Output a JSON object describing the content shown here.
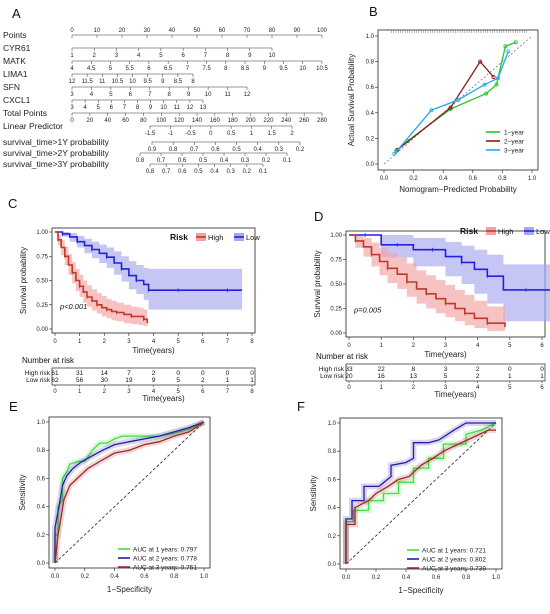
{
  "colors": {
    "high": "#c0392b",
    "low": "#2222dd",
    "high_band": "#f2a2a2",
    "low_band": "#a8a8f0",
    "y1": "#22cc22",
    "y2": "#8b1a1a",
    "y3": "#22aaee",
    "roc1": "#44dd44",
    "roc2": "#2a1aa8",
    "roc3": "#a02828"
  },
  "panels": {
    "a": "A",
    "b": "B",
    "c": "C",
    "d": "D",
    "e": "E",
    "f": "F"
  },
  "chart_data": [
    {
      "type": "nomogram",
      "panel": "A",
      "rows": [
        {
          "label": "Points",
          "ticks": [
            "0",
            "10",
            "20",
            "30",
            "40",
            "50",
            "60",
            "70",
            "80",
            "90",
            "100"
          ],
          "range": [
            0,
            100
          ]
        },
        {
          "label": "CYR61",
          "ticks": [
            "1",
            "2",
            "3",
            "4",
            "5",
            "6",
            "7",
            "8",
            "9",
            "10"
          ],
          "range": [
            1,
            10
          ]
        },
        {
          "label": "MATK",
          "ticks": [
            "4",
            "4.5",
            "5",
            "5.5",
            "6",
            "6.5",
            "7",
            "7.5",
            "8",
            "8.5",
            "9",
            "9.5",
            "10",
            "10.5"
          ],
          "range": [
            4,
            10.5
          ]
        },
        {
          "label": "LIMA1",
          "ticks": [
            "12",
            "11.5",
            "11",
            "10.5",
            "10",
            "9.5",
            "9",
            "8.5",
            "8"
          ],
          "range": [
            12,
            8
          ]
        },
        {
          "label": "SFN",
          "ticks": [
            "3",
            "4",
            "5",
            "6",
            "7",
            "8",
            "9",
            "10",
            "11",
            "12"
          ],
          "range": [
            3,
            12
          ]
        },
        {
          "label": "CXCL1",
          "ticks": [
            "3",
            "4",
            "5",
            "6",
            "7",
            "8",
            "9",
            "10",
            "11",
            "12",
            "13"
          ],
          "range": [
            3,
            13
          ]
        },
        {
          "label": "Total Points",
          "ticks": [
            "0",
            "20",
            "40",
            "60",
            "80",
            "100",
            "120",
            "140",
            "160",
            "180",
            "200",
            "220",
            "240",
            "260",
            "280"
          ],
          "range": [
            0,
            280
          ]
        },
        {
          "label": "Linear Predictor",
          "ticks": [
            "-1.5",
            "-1",
            "-0.5",
            "0",
            "0.5",
            "1",
            "1.5",
            "2"
          ],
          "range": [
            -1.5,
            2
          ]
        },
        {
          "label": "survival_time>1Y probability",
          "ticks": [
            "0.9",
            "0.8",
            "0.7",
            "0.6",
            "0.5",
            "0.4",
            "0.3",
            "0.2"
          ],
          "range": [
            0.9,
            0.2
          ]
        },
        {
          "label": "survival_time>2Y probability",
          "ticks": [
            "0.8",
            "0.7",
            "0.6",
            "0.5",
            "0.4",
            "0.3",
            "0.2",
            "0.1"
          ],
          "range": [
            0.8,
            0.1
          ]
        },
        {
          "label": "survival_time>3Y probability",
          "ticks": [
            "0.8",
            "0.7",
            "0.6",
            "0.5",
            "0.4",
            "0.3",
            "0.2",
            "0.1"
          ],
          "range": [
            0.8,
            0.1
          ]
        }
      ]
    },
    {
      "type": "line",
      "panel": "B",
      "xlabel": "Nomogram−Predicted Probability",
      "ylabel": "Actual Survival Probability",
      "xlim": [
        0,
        1.0
      ],
      "ylim": [
        0,
        1.0
      ],
      "xticks": [
        "0.0",
        "0.2",
        "0.4",
        "0.6",
        "0.8",
        "1.0"
      ],
      "yticks": [
        "0.0",
        "0.2",
        "0.4",
        "0.6",
        "0.8",
        "1.0"
      ],
      "legend_position": "bottom-right",
      "series": [
        {
          "name": "1−year",
          "x": [
            0.08,
            0.16,
            0.45,
            0.69,
            0.76,
            0.82,
            0.89
          ],
          "y": [
            0.1,
            0.18,
            0.43,
            0.55,
            0.62,
            0.92,
            0.95
          ]
        },
        {
          "name": "2−year",
          "x": [
            0.09,
            0.45,
            0.65,
            0.74
          ],
          "y": [
            0.11,
            0.44,
            0.8,
            0.68
          ]
        },
        {
          "name": "3−year",
          "x": [
            0.07,
            0.32,
            0.5,
            0.68,
            0.77,
            0.84
          ],
          "y": [
            0.08,
            0.42,
            0.5,
            0.62,
            0.67,
            0.88
          ]
        }
      ]
    },
    {
      "type": "line",
      "panel": "C",
      "kind": "kaplan-meier",
      "xlabel": "Time(years)",
      "ylabel": "Survival probability",
      "xlim": [
        0,
        8
      ],
      "ylim": [
        0,
        1.0
      ],
      "xticks": [
        "0",
        "1",
        "2",
        "3",
        "4",
        "5",
        "6",
        "7",
        "8"
      ],
      "yticks": [
        "0.00",
        "0.25",
        "0.50",
        "0.75",
        "1.00"
      ],
      "pvalue": "p<0.001",
      "legend_title": "Risk",
      "series": [
        {
          "name": "High",
          "x": [
            0,
            0.12,
            0.25,
            0.4,
            0.55,
            0.7,
            0.85,
            1.0,
            1.15,
            1.3,
            1.5,
            1.7,
            1.9,
            2.1,
            2.3,
            2.5,
            2.8,
            3.1,
            3.4,
            3.6,
            3.75
          ],
          "y": [
            1.0,
            0.92,
            0.84,
            0.75,
            0.66,
            0.58,
            0.5,
            0.44,
            0.38,
            0.33,
            0.29,
            0.25,
            0.22,
            0.2,
            0.18,
            0.17,
            0.15,
            0.13,
            0.13,
            0.1,
            0.06
          ],
          "lower": [
            1.0,
            0.86,
            0.76,
            0.66,
            0.56,
            0.47,
            0.39,
            0.33,
            0.27,
            0.23,
            0.19,
            0.16,
            0.13,
            0.11,
            0.09,
            0.08,
            0.06,
            0.05,
            0.04,
            0.03,
            0.01
          ],
          "upper": [
            1.0,
            0.97,
            0.92,
            0.85,
            0.77,
            0.69,
            0.62,
            0.56,
            0.5,
            0.45,
            0.41,
            0.37,
            0.34,
            0.31,
            0.29,
            0.27,
            0.25,
            0.23,
            0.22,
            0.2,
            0.16
          ]
        },
        {
          "name": "Low",
          "x": [
            0,
            0.3,
            0.6,
            0.9,
            1.2,
            1.5,
            1.8,
            2.1,
            2.4,
            2.7,
            3.0,
            3.3,
            3.6,
            3.8,
            4.2,
            5.0,
            6.0,
            7.0,
            7.6
          ],
          "y": [
            1.0,
            0.98,
            0.95,
            0.9,
            0.86,
            0.82,
            0.78,
            0.74,
            0.68,
            0.62,
            0.55,
            0.5,
            0.46,
            0.4,
            0.4,
            0.4,
            0.4,
            0.4,
            0.4
          ],
          "lower": [
            1.0,
            0.95,
            0.9,
            0.84,
            0.78,
            0.73,
            0.68,
            0.63,
            0.56,
            0.49,
            0.41,
            0.36,
            0.3,
            0.2,
            0.2,
            0.2,
            0.2,
            0.2,
            0.2
          ],
          "upper": [
            1.0,
            1.0,
            0.99,
            0.96,
            0.93,
            0.9,
            0.87,
            0.84,
            0.8,
            0.75,
            0.7,
            0.66,
            0.63,
            0.62,
            0.62,
            0.62,
            0.62,
            0.62,
            0.62
          ]
        }
      ],
      "number_at_risk": {
        "title": "Number at risk",
        "xlabel": "Time(years)",
        "times": [
          "0",
          "1",
          "2",
          "3",
          "4",
          "5",
          "6",
          "7",
          "8"
        ],
        "rows": [
          {
            "label": "High risk",
            "values": [
              "61",
              "31",
              "14",
              "7",
              "2",
              "0",
              "0",
              "0",
              "0"
            ]
          },
          {
            "label": "Low risk",
            "values": [
              "62",
              "56",
              "30",
              "19",
              "9",
              "5",
              "2",
              "1",
              "1"
            ]
          }
        ]
      }
    },
    {
      "type": "line",
      "panel": "D",
      "kind": "kaplan-meier",
      "xlabel": "Time(years)",
      "ylabel": "Survival probability",
      "xlim": [
        0,
        6
      ],
      "ylim": [
        0,
        1.0
      ],
      "xticks": [
        "0",
        "1",
        "2",
        "3",
        "4",
        "5",
        "6"
      ],
      "yticks": [
        "0.00",
        "0.25",
        "0.50",
        "0.75",
        "1.00"
      ],
      "pvalue": "p=0.005",
      "legend_title": "Risk",
      "series": [
        {
          "name": "High",
          "x": [
            0,
            0.2,
            0.45,
            0.7,
            0.95,
            1.2,
            1.5,
            1.8,
            2.1,
            2.4,
            2.7,
            3.0,
            3.3,
            3.6,
            3.9,
            4.3,
            4.85
          ],
          "y": [
            1.0,
            0.94,
            0.88,
            0.8,
            0.73,
            0.66,
            0.6,
            0.52,
            0.45,
            0.4,
            0.35,
            0.3,
            0.25,
            0.2,
            0.15,
            0.1,
            0.06
          ],
          "lower": [
            1.0,
            0.87,
            0.78,
            0.68,
            0.59,
            0.51,
            0.45,
            0.37,
            0.3,
            0.25,
            0.2,
            0.16,
            0.12,
            0.08,
            0.05,
            0.02,
            0.01
          ],
          "upper": [
            1.0,
            0.99,
            0.97,
            0.92,
            0.87,
            0.82,
            0.77,
            0.71,
            0.64,
            0.59,
            0.54,
            0.49,
            0.44,
            0.39,
            0.33,
            0.27,
            0.22
          ]
        },
        {
          "name": "Low",
          "x": [
            0,
            0.5,
            1.0,
            1.5,
            2.0,
            2.6,
            3.0,
            3.5,
            3.9,
            4.3,
            4.8,
            5.5,
            6.3
          ],
          "y": [
            1.0,
            1.0,
            0.9,
            0.9,
            0.85,
            0.85,
            0.78,
            0.72,
            0.65,
            0.58,
            0.44,
            0.44,
            0.44
          ],
          "lower": [
            1.0,
            1.0,
            0.77,
            0.77,
            0.68,
            0.68,
            0.58,
            0.5,
            0.4,
            0.3,
            0.12,
            0.12,
            0.12
          ],
          "upper": [
            1.0,
            1.0,
            1.0,
            1.0,
            0.97,
            0.97,
            0.93,
            0.89,
            0.85,
            0.8,
            0.7,
            0.7,
            0.7
          ]
        }
      ],
      "number_at_risk": {
        "title": "Number at risk",
        "xlabel": "Time(years)",
        "times": [
          "0",
          "1",
          "2",
          "3",
          "4",
          "5",
          "6"
        ],
        "rows": [
          {
            "label": "High risk",
            "values": [
              "33",
              "22",
              "8",
              "3",
              "2",
              "0",
              "0"
            ]
          },
          {
            "label": "Low risk",
            "values": [
              "20",
              "16",
              "13",
              "5",
              "2",
              "1",
              "1"
            ]
          }
        ]
      }
    },
    {
      "type": "line",
      "panel": "E",
      "kind": "roc",
      "xlabel": "1−Specificity",
      "ylabel": "Sensitivity",
      "xlim": [
        0,
        1.0
      ],
      "ylim": [
        0,
        1.0
      ],
      "xticks": [
        "0.0",
        "0.2",
        "0.4",
        "0.6",
        "0.8",
        "1.0"
      ],
      "yticks": [
        "0.0",
        "0.2",
        "0.4",
        "0.6",
        "0.8",
        "1.0"
      ],
      "legend_position": "bottom-right",
      "series": [
        {
          "name": "AUC at 1 years: 0.797",
          "x": [
            0,
            0,
            0.02,
            0.02,
            0.05,
            0.05,
            0.08,
            0.1,
            0.15,
            0.2,
            0.25,
            0.3,
            0.35,
            0.4,
            0.45,
            0.5,
            0.6,
            0.7,
            0.8,
            0.9,
            1.0
          ],
          "y": [
            0,
            0.2,
            0.2,
            0.4,
            0.45,
            0.6,
            0.65,
            0.7,
            0.72,
            0.72,
            0.8,
            0.85,
            0.85,
            0.88,
            0.9,
            0.9,
            0.9,
            0.9,
            0.92,
            0.95,
            1.0
          ]
        },
        {
          "name": "AUC at 2 years: 0.778",
          "x": [
            0,
            0,
            0.03,
            0.05,
            0.08,
            0.12,
            0.18,
            0.25,
            0.32,
            0.4,
            0.5,
            0.6,
            0.7,
            0.8,
            0.9,
            1.0
          ],
          "y": [
            0,
            0.25,
            0.42,
            0.55,
            0.62,
            0.67,
            0.72,
            0.76,
            0.8,
            0.84,
            0.86,
            0.88,
            0.9,
            0.93,
            0.96,
            1.0
          ]
        },
        {
          "name": "AUC at 3 years: 0.751",
          "x": [
            0,
            0.02,
            0.04,
            0.06,
            0.1,
            0.15,
            0.22,
            0.3,
            0.4,
            0.5,
            0.6,
            0.7,
            0.8,
            0.9,
            1.0
          ],
          "y": [
            0,
            0.2,
            0.32,
            0.45,
            0.55,
            0.6,
            0.67,
            0.72,
            0.78,
            0.8,
            0.84,
            0.86,
            0.9,
            0.93,
            1.0
          ]
        }
      ]
    },
    {
      "type": "line",
      "panel": "F",
      "kind": "roc",
      "xlabel": "1−Specificity",
      "ylabel": "Sensitivity",
      "xlim": [
        0,
        1.0
      ],
      "ylim": [
        0,
        1.0
      ],
      "xticks": [
        "0.0",
        "0.2",
        "0.4",
        "0.6",
        "0.8",
        "1.0"
      ],
      "yticks": [
        "0.0",
        "0.2",
        "0.4",
        "0.6",
        "0.8",
        "1.0"
      ],
      "legend_position": "bottom-right",
      "series": [
        {
          "name": "AUC at 1 years: 0.721",
          "x": [
            0,
            0,
            0.05,
            0.05,
            0.15,
            0.15,
            0.25,
            0.25,
            0.35,
            0.35,
            0.45,
            0.45,
            0.55,
            0.55,
            0.65,
            0.65,
            0.8,
            0.8,
            0.9,
            1.0
          ],
          "y": [
            0,
            0.3,
            0.3,
            0.38,
            0.38,
            0.45,
            0.45,
            0.5,
            0.5,
            0.58,
            0.58,
            0.68,
            0.68,
            0.75,
            0.75,
            0.85,
            0.85,
            0.92,
            0.95,
            1.0
          ]
        },
        {
          "name": "AUC at 2 years: 0.802",
          "x": [
            0,
            0,
            0.04,
            0.04,
            0.12,
            0.12,
            0.22,
            0.3,
            0.3,
            0.4,
            0.45,
            0.45,
            0.55,
            0.62,
            0.72,
            0.8,
            1.0
          ],
          "y": [
            0,
            0.32,
            0.32,
            0.45,
            0.45,
            0.55,
            0.55,
            0.62,
            0.7,
            0.72,
            0.75,
            0.86,
            0.86,
            0.88,
            0.95,
            1.0,
            1.0
          ]
        },
        {
          "name": "AUC at 3 years: 0.739",
          "x": [
            0,
            0,
            0.06,
            0.06,
            0.15,
            0.2,
            0.28,
            0.35,
            0.42,
            0.5,
            0.58,
            0.65,
            0.75,
            0.85,
            0.95,
            1.0
          ],
          "y": [
            0,
            0.28,
            0.28,
            0.4,
            0.45,
            0.5,
            0.55,
            0.6,
            0.62,
            0.7,
            0.75,
            0.8,
            0.85,
            0.9,
            0.95,
            0.95
          ]
        }
      ]
    }
  ]
}
